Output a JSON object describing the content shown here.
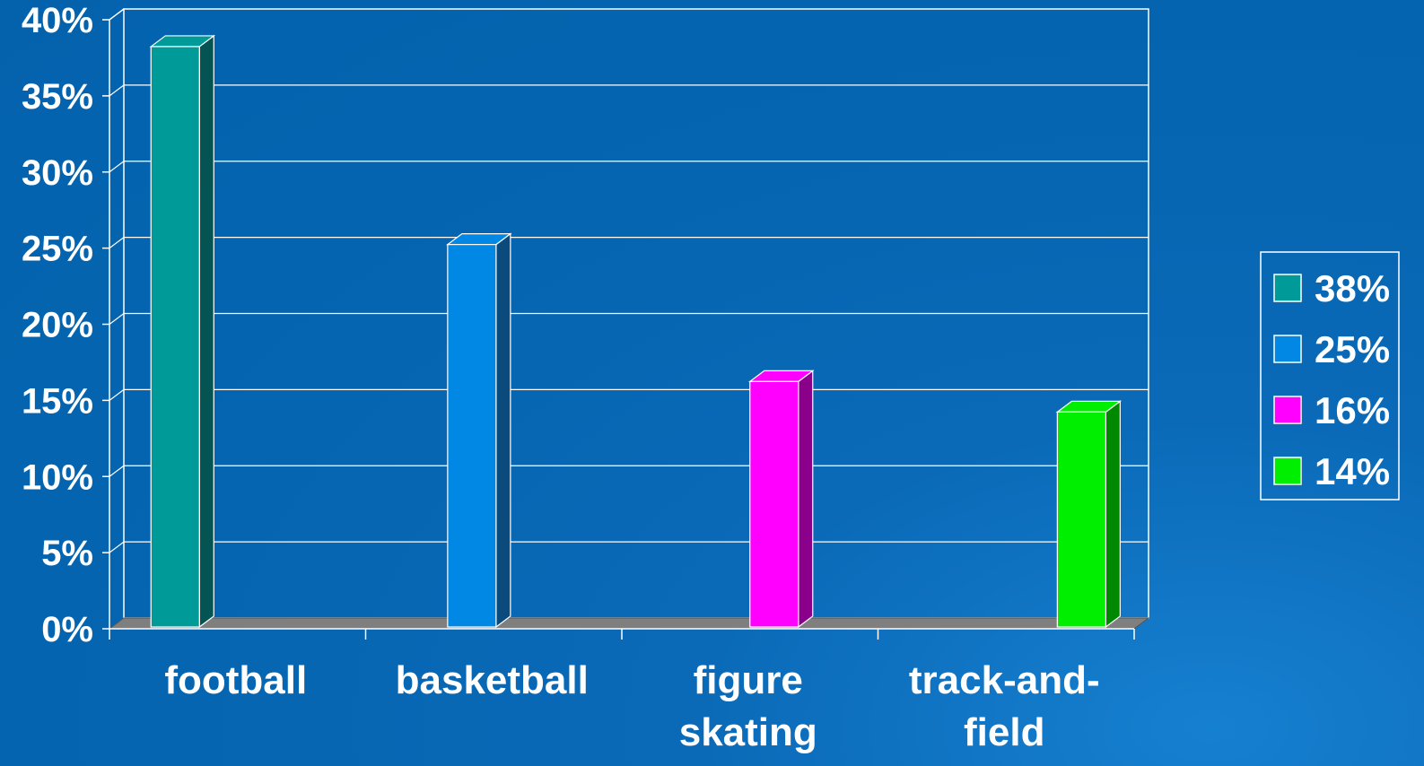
{
  "chart_data": {
    "type": "bar",
    "categories": [
      [
        "football"
      ],
      [
        "basketball"
      ],
      [
        "figure",
        "skating"
      ],
      [
        "track-and-",
        "field"
      ]
    ],
    "values": [
      38,
      25,
      16,
      14
    ],
    "colors": [
      "#009a99",
      "#0188e4",
      "#ff00ff",
      "#00ee00"
    ],
    "side_colors": [
      "#045454",
      "#0a4a7c",
      "#8a008a",
      "#008800"
    ],
    "y_ticks": [
      "0%",
      "5%",
      "10%",
      "15%",
      "20%",
      "25%",
      "30%",
      "35%",
      "40%"
    ],
    "ylim": [
      0,
      40
    ],
    "grid": true,
    "legend_position": "right",
    "legend": [
      "38%",
      "25%",
      "16%",
      "14%"
    ]
  }
}
